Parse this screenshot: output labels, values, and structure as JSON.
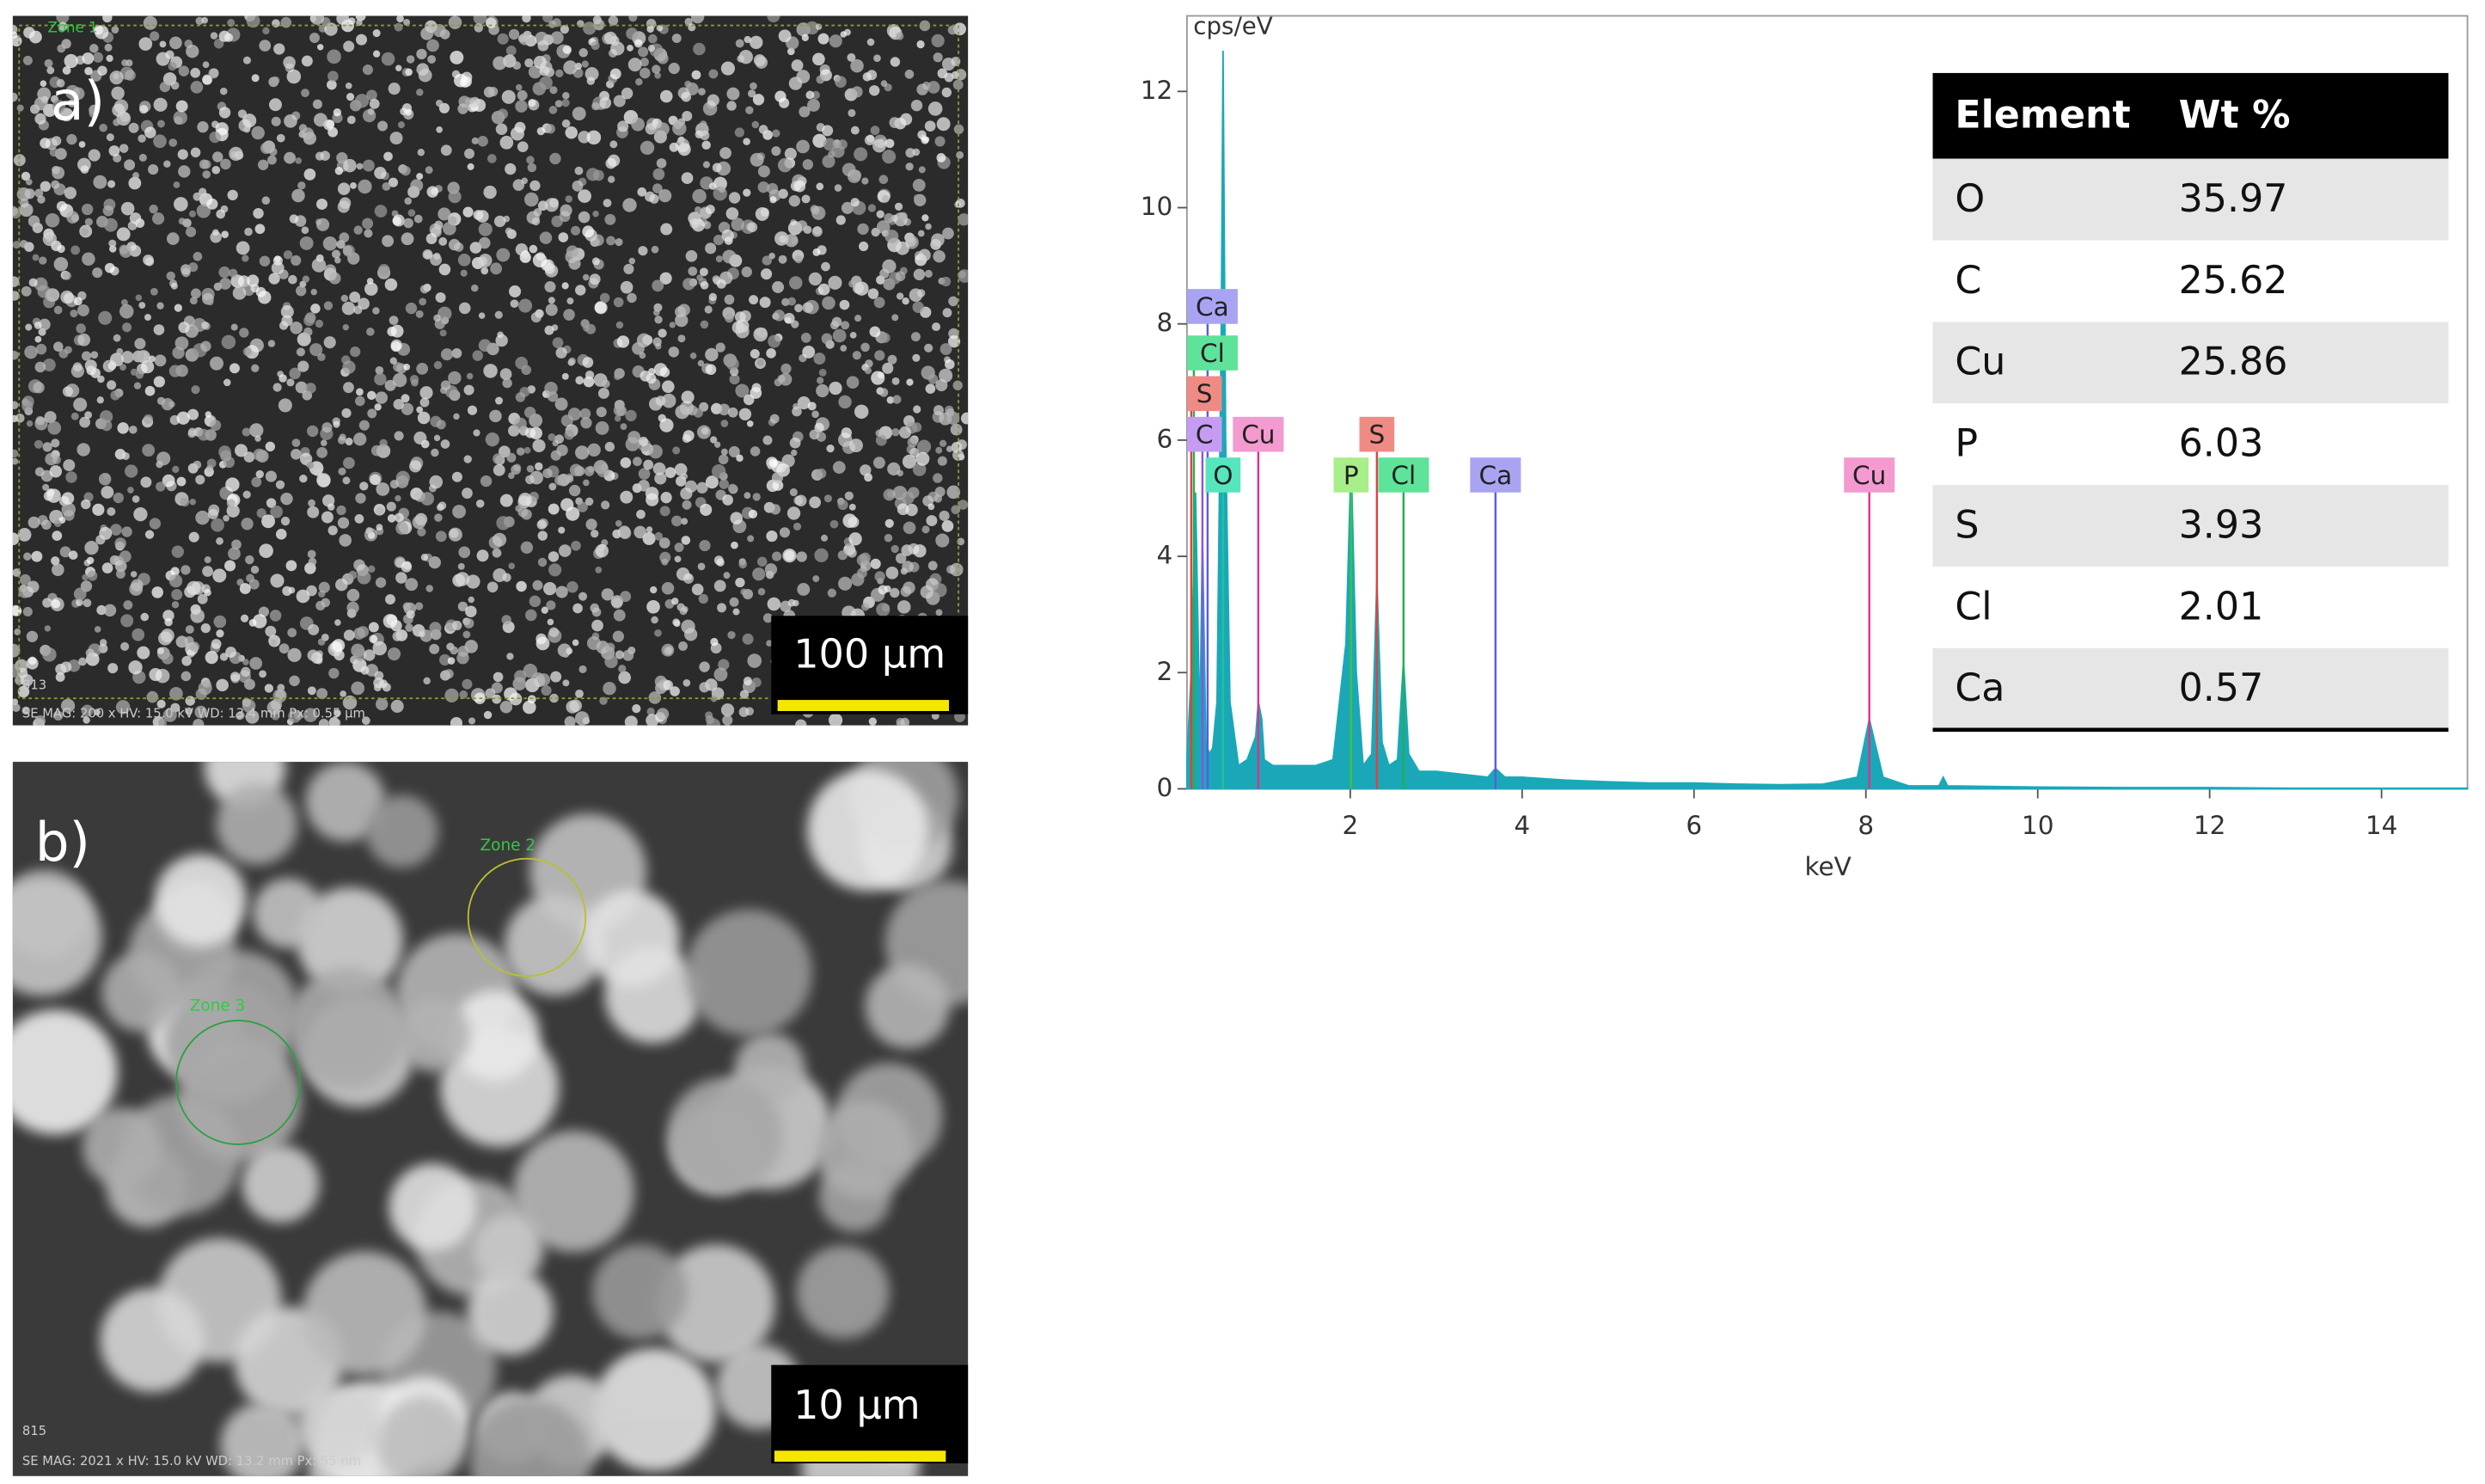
{
  "panels": {
    "a": {
      "label": "a)",
      "scale_bar": "100 µm",
      "zone": "Zone 1",
      "info": "SE  MAG: 200 x  HV: 15.0 kV  WD: 13.4 mm  Px: 0.55 µm",
      "id": "813"
    },
    "b": {
      "label": "b)",
      "scale_bar": "10 µm",
      "zones": [
        "Zone 2",
        "Zone 3"
      ],
      "info": "SE  MAG: 2021 x  HV: 15.0 kV  WD: 13.2 mm  Px: 55 nm",
      "id": "815"
    }
  },
  "chart_data": {
    "type": "area",
    "ylabel": "cps/eV",
    "xlabel": "keV",
    "xlim": [
      0.1,
      15
    ],
    "ylim": [
      0,
      13.3
    ],
    "xticks": [
      2,
      4,
      6,
      8,
      10,
      12,
      14
    ],
    "yticks": [
      0,
      2,
      4,
      6,
      8,
      10,
      12
    ],
    "series": [
      {
        "color": "#1aa8b8",
        "x": [
          0.1,
          0.15,
          0.2,
          0.25,
          0.28,
          0.32,
          0.36,
          0.4,
          0.45,
          0.5,
          0.52,
          0.55,
          0.6,
          0.7,
          0.8,
          0.9,
          0.93,
          0.97,
          1.0,
          1.1,
          1.2,
          1.4,
          1.6,
          1.8,
          1.95,
          2.01,
          2.07,
          2.15,
          2.25,
          2.31,
          2.37,
          2.45,
          2.55,
          2.62,
          2.68,
          2.8,
          3.0,
          3.3,
          3.6,
          3.69,
          3.8,
          4.0,
          4.5,
          5,
          5.5,
          6,
          6.5,
          7,
          7.5,
          7.9,
          8.04,
          8.2,
          8.5,
          8.85,
          8.9,
          8.95,
          9.5,
          10,
          11,
          12,
          13,
          14,
          15
        ],
        "values": [
          0.5,
          2.0,
          5.1,
          1.0,
          4.4,
          0.8,
          0.6,
          0.7,
          1.5,
          8,
          12.7,
          6,
          1.5,
          0.4,
          0.5,
          0.9,
          1.5,
          1.2,
          0.5,
          0.4,
          0.4,
          0.4,
          0.4,
          0.5,
          2.5,
          5.7,
          2.0,
          0.4,
          0.6,
          3.6,
          0.8,
          0.4,
          0.5,
          2.2,
          0.6,
          0.3,
          0.3,
          0.25,
          0.2,
          0.35,
          0.2,
          0.2,
          0.15,
          0.12,
          0.1,
          0.1,
          0.08,
          0.07,
          0.08,
          0.2,
          1.2,
          0.2,
          0.05,
          0.05,
          0.2,
          0.05,
          0.04,
          0.03,
          0.02,
          0.02,
          0.01,
          0.01,
          0.01
        ]
      }
    ],
    "annotations": [
      {
        "text": "Ca",
        "x": 0.34,
        "color": "#a9a4f2",
        "line_color": "#5a5ae8"
      },
      {
        "text": "Cl",
        "x": 0.18,
        "color": "#5ee39a",
        "line_color": "#22b050"
      },
      {
        "text": "S",
        "x": 0.15,
        "color": "#f08a84",
        "line_color": "#e04040"
      },
      {
        "text": "C",
        "x": 0.28,
        "color": "#c59cf2",
        "line_color": "#9050e0"
      },
      {
        "text": "Cu",
        "x": 0.93,
        "color": "#f39ad0",
        "line_color": "#e0308a"
      },
      {
        "text": "O",
        "x": 0.52,
        "color": "#55e6be",
        "line_color": "#20c0a0"
      },
      {
        "text": "P",
        "x": 2.01,
        "color": "#a8ef8a",
        "line_color": "#40c040"
      },
      {
        "text": "S",
        "x": 2.31,
        "color": "#f08a84",
        "line_color": "#e04040"
      },
      {
        "text": "Cl",
        "x": 2.62,
        "color": "#5ee39a",
        "line_color": "#22b050"
      },
      {
        "text": "Ca",
        "x": 3.69,
        "color": "#a9a4f2",
        "line_color": "#5a5ae8"
      },
      {
        "text": "Cu",
        "x": 8.04,
        "color": "#f39ad0",
        "line_color": "#e0308a"
      }
    ]
  },
  "table": {
    "header": [
      "Element",
      "Wt %"
    ],
    "rows": [
      [
        "O",
        "35.97"
      ],
      [
        "C",
        "25.62"
      ],
      [
        "Cu",
        "25.86"
      ],
      [
        "P",
        "6.03"
      ],
      [
        "S",
        "3.93"
      ],
      [
        "Cl",
        "2.01"
      ],
      [
        "Ca",
        "0.57"
      ]
    ]
  }
}
